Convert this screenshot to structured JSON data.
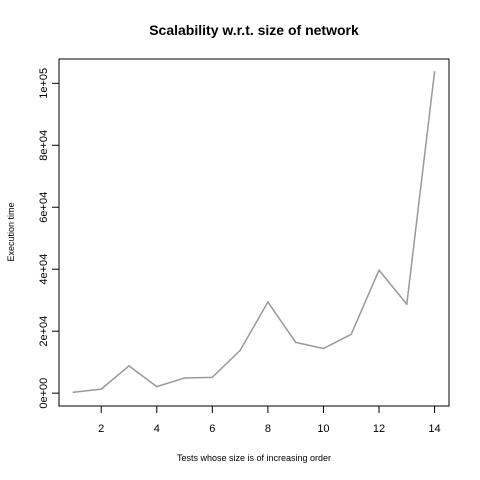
{
  "chart_data": {
    "type": "line",
    "title": "Scalability w.r.t. size of network",
    "xlabel": "Tests whose size is of increasing order",
    "ylabel": "Execution time",
    "x": [
      1,
      2,
      3,
      4,
      5,
      6,
      7,
      8,
      9,
      10,
      11,
      12,
      13,
      14
    ],
    "values": [
      300,
      1300,
      8800,
      2100,
      4900,
      5100,
      13800,
      29400,
      16400,
      14400,
      19000,
      39700,
      28700,
      103700
    ],
    "xlim": [
      0.48,
      14.52
    ],
    "ylim": [
      -4148,
      107848
    ],
    "x_ticks": [
      2,
      4,
      6,
      8,
      10,
      12,
      14
    ],
    "x_tick_labels": [
      "2",
      "4",
      "6",
      "8",
      "10",
      "12",
      "14"
    ],
    "y_ticks": [
      0,
      20000,
      40000,
      60000,
      80000,
      100000
    ],
    "y_tick_labels": [
      "0e+00",
      "2e+04",
      "4e+04",
      "6e+04",
      "8e+04",
      "1e+05"
    ],
    "line_color": "#999999",
    "grid": false
  }
}
